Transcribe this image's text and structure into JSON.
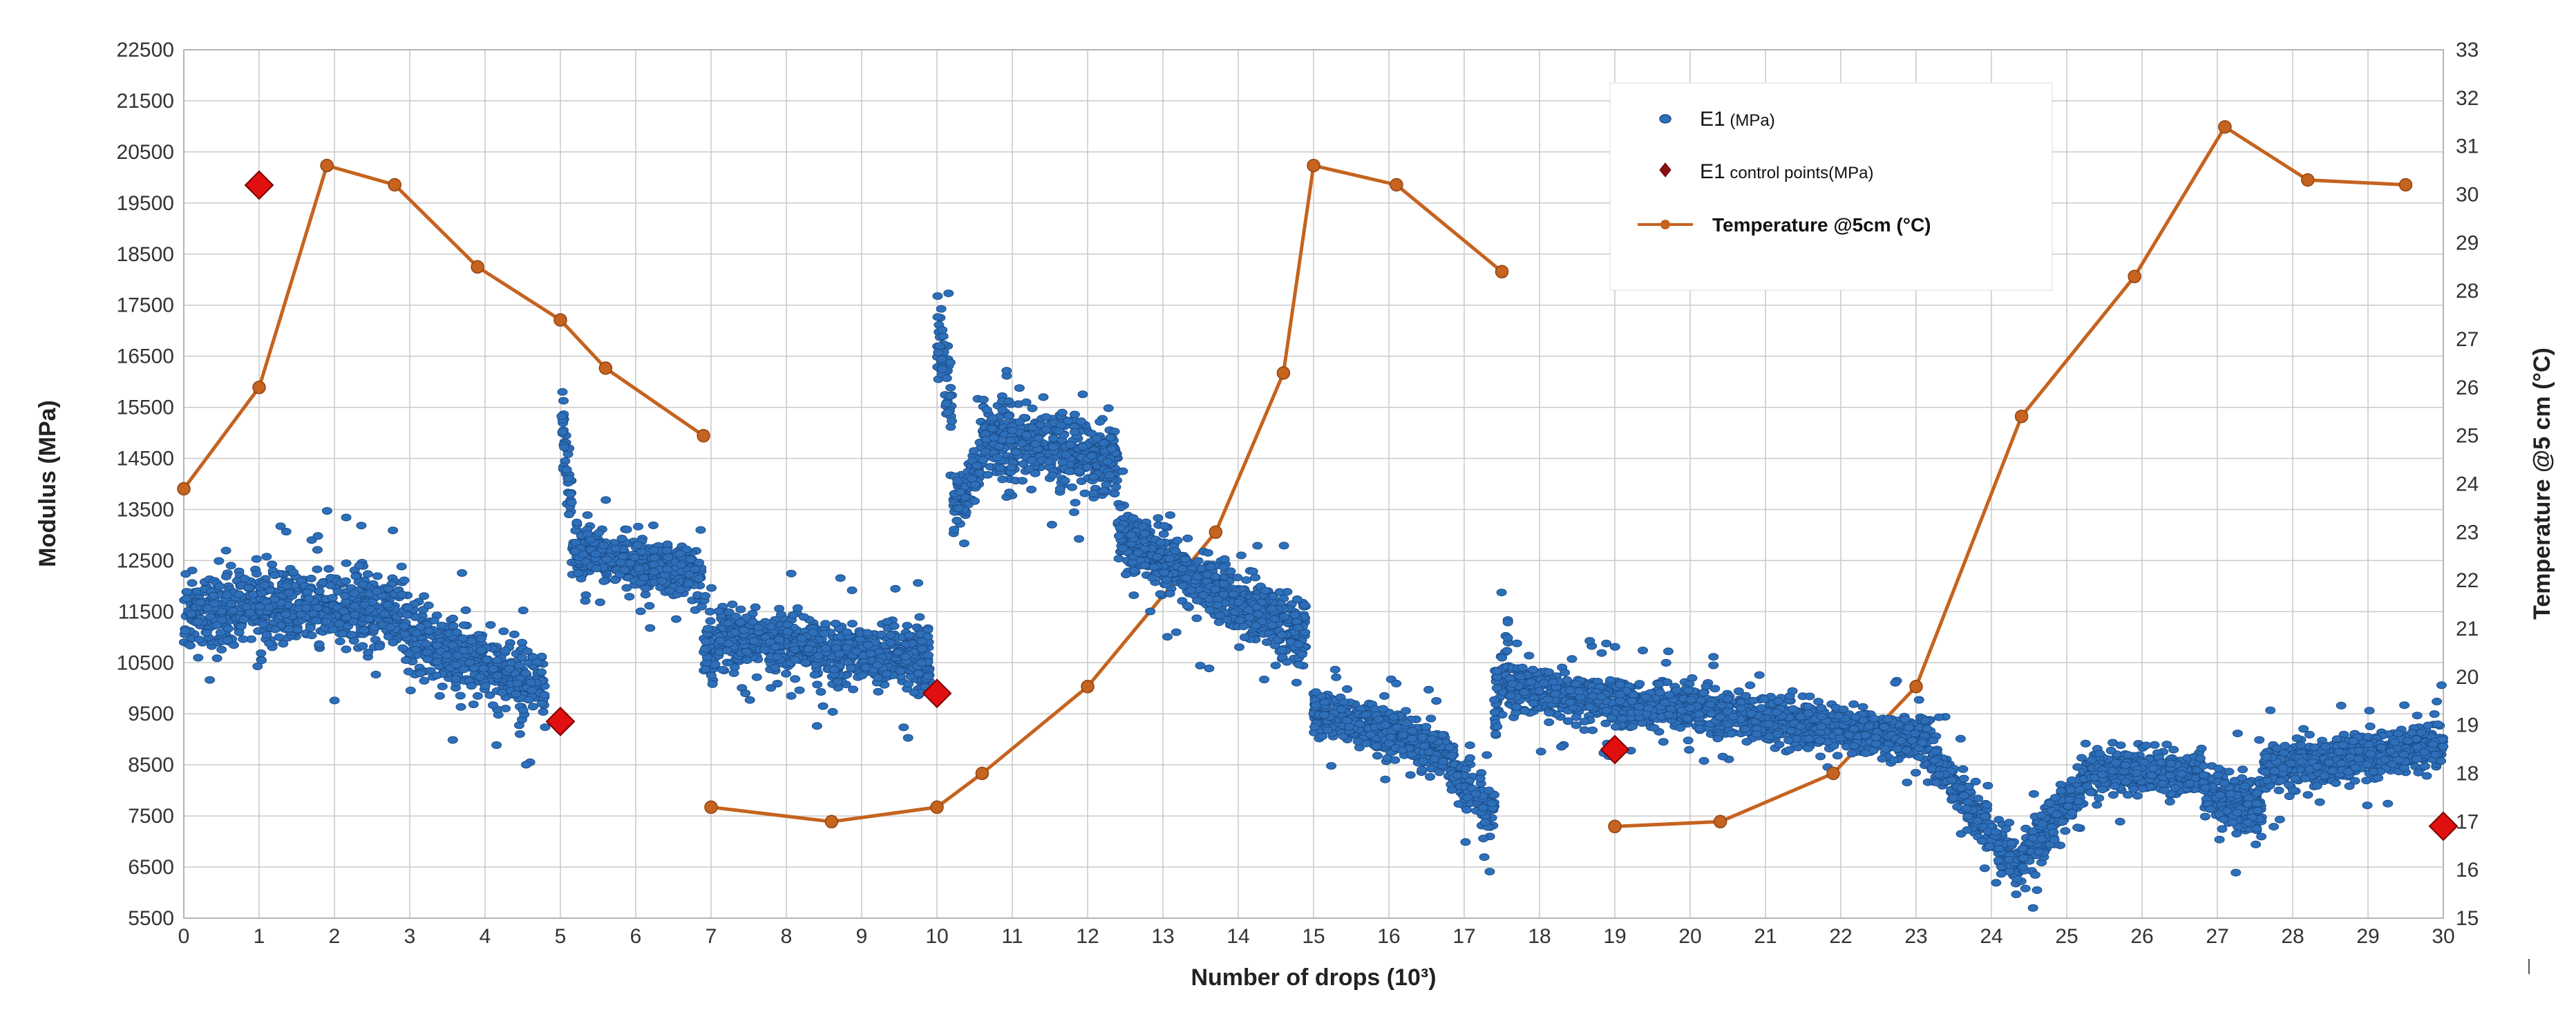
{
  "chart_data": {
    "type": "scatter",
    "title": "",
    "xlabel": "Number of drops (10³)",
    "ylabel_left": "Modulus (MPa)",
    "ylabel_right": "Temperature @5 cm (°C)",
    "xlim": [
      0,
      30
    ],
    "ylim_left": [
      5500,
      22500
    ],
    "ylim_right": [
      15,
      33
    ],
    "x_ticks": [
      "0",
      "1",
      "2",
      "3",
      "4",
      "5",
      "6",
      "7",
      "8",
      "9",
      "10",
      "11",
      "12",
      "13",
      "14",
      "15",
      "16",
      "17",
      "18",
      "19",
      "20",
      "21",
      "22",
      "23",
      "24",
      "25",
      "26",
      "27",
      "28",
      "29",
      "30"
    ],
    "y_left_ticks": [
      "5500",
      "6500",
      "7500",
      "8500",
      "9500",
      "10500",
      "11500",
      "12500",
      "13500",
      "14500",
      "15500",
      "16500",
      "17500",
      "18500",
      "19500",
      "20500",
      "21500",
      "22500"
    ],
    "y_right_ticks": [
      "15",
      "16",
      "17",
      "18",
      "19",
      "20",
      "21",
      "22",
      "23",
      "24",
      "25",
      "26",
      "27",
      "28",
      "29",
      "30",
      "31",
      "32",
      "33"
    ],
    "grid": true,
    "legend_position": "top-right",
    "legend": {
      "e1": {
        "label_main": "E1",
        "label_unit": " (MPa)"
      },
      "control": {
        "label_main": "E1",
        "label_unit": " control points(MPa)"
      },
      "temperature": {
        "label": "Temperature @5cm (°C)"
      }
    },
    "colors": {
      "e1": "#2e6fba",
      "e1_edge": "#1b4e8a",
      "control": "#e01010",
      "control_edge": "#7a0000",
      "temperature": "#c5631f",
      "grid": "#c9c9c9"
    },
    "series": [
      {
        "name": "E1 (MPa)",
        "kind": "scatter-trend",
        "axis": "left",
        "trend": [
          {
            "x0": 0.0,
            "x1": 1.0,
            "y0": 11500,
            "y1": 11600,
            "spread": 1400
          },
          {
            "x0": 1.0,
            "x1": 2.9,
            "y0": 11600,
            "y1": 11500,
            "spread": 1500
          },
          {
            "x0": 2.9,
            "x1": 4.8,
            "y0": 11000,
            "y1": 10000,
            "spread": 1400
          },
          {
            "x0": 5.0,
            "x1": 5.15,
            "y0": 15500,
            "y1": 13500,
            "spread": 1600
          },
          {
            "x0": 5.15,
            "x1": 6.9,
            "y0": 12700,
            "y1": 12200,
            "spread": 1000
          },
          {
            "x0": 6.9,
            "x1": 7.1,
            "y0": 11000,
            "y1": 10500,
            "spread": 1800
          },
          {
            "x0": 7.1,
            "x1": 9.9,
            "y0": 11000,
            "y1": 10500,
            "spread": 1200
          },
          {
            "x0": 10.0,
            "x1": 10.2,
            "y0": 17000,
            "y1": 15500,
            "spread": 1600
          },
          {
            "x0": 10.2,
            "x1": 10.6,
            "y0": 13500,
            "y1": 14500,
            "spread": 1200
          },
          {
            "x0": 10.6,
            "x1": 12.4,
            "y0": 15000,
            "y1": 14500,
            "spread": 1500
          },
          {
            "x0": 12.4,
            "x1": 14.9,
            "y0": 13000,
            "y1": 11000,
            "spread": 1300
          },
          {
            "x0": 15.0,
            "x1": 16.8,
            "y0": 9600,
            "y1": 8700,
            "spread": 900
          },
          {
            "x0": 16.8,
            "x1": 17.4,
            "y0": 8500,
            "y1": 7600,
            "spread": 1000
          },
          {
            "x0": 17.4,
            "x1": 17.6,
            "y0": 9500,
            "y1": 11000,
            "spread": 1600
          },
          {
            "x0": 17.6,
            "x1": 23.2,
            "y0": 10000,
            "y1": 9000,
            "spread": 900
          },
          {
            "x0": 23.2,
            "x1": 24.4,
            "y0": 8700,
            "y1": 6400,
            "spread": 900
          },
          {
            "x0": 24.4,
            "x1": 25.3,
            "y0": 6600,
            "y1": 8300,
            "spread": 1000
          },
          {
            "x0": 25.3,
            "x1": 26.8,
            "y0": 8400,
            "y1": 8300,
            "spread": 800
          },
          {
            "x0": 26.8,
            "x1": 27.6,
            "y0": 8000,
            "y1": 7600,
            "spread": 1100
          },
          {
            "x0": 27.6,
            "x1": 30.0,
            "y0": 8400,
            "y1": 8900,
            "spread": 900
          }
        ]
      },
      {
        "name": "E1 control points(MPa)",
        "kind": "scatter",
        "axis": "left",
        "points": [
          {
            "x": 1.0,
            "y": 19850
          },
          {
            "x": 5.0,
            "y": 9350
          },
          {
            "x": 10.0,
            "y": 9900
          },
          {
            "x": 19.0,
            "y": 8800
          },
          {
            "x": 30.0,
            "y": 7300
          }
        ]
      },
      {
        "name": "Temperature @5cm (°C)",
        "kind": "line",
        "axis": "right",
        "segments": [
          [
            {
              "x": 0.0,
              "y": 23.9
            },
            {
              "x": 1.0,
              "y": 26.0
            },
            {
              "x": 1.9,
              "y": 30.6
            },
            {
              "x": 2.8,
              "y": 30.2
            },
            {
              "x": 3.9,
              "y": 28.5
            },
            {
              "x": 5.0,
              "y": 27.4
            },
            {
              "x": 5.6,
              "y": 26.4
            },
            {
              "x": 6.9,
              "y": 25.0
            }
          ],
          [
            {
              "x": 7.0,
              "y": 17.3
            },
            {
              "x": 8.6,
              "y": 17.0
            },
            {
              "x": 10.0,
              "y": 17.3
            },
            {
              "x": 10.6,
              "y": 18.0
            },
            {
              "x": 12.0,
              "y": 19.8
            },
            {
              "x": 13.7,
              "y": 23.0
            },
            {
              "x": 14.6,
              "y": 26.3
            },
            {
              "x": 15.0,
              "y": 30.6
            },
            {
              "x": 16.1,
              "y": 30.2
            },
            {
              "x": 17.5,
              "y": 28.4
            }
          ],
          [
            {
              "x": 19.0,
              "y": 16.9
            },
            {
              "x": 20.4,
              "y": 17.0
            },
            {
              "x": 21.9,
              "y": 18.0
            },
            {
              "x": 23.0,
              "y": 19.8
            },
            {
              "x": 24.4,
              "y": 25.4
            },
            {
              "x": 25.9,
              "y": 28.3
            },
            {
              "x": 27.1,
              "y": 31.4
            },
            {
              "x": 28.2,
              "y": 30.3
            },
            {
              "x": 29.5,
              "y": 30.2
            }
          ]
        ]
      }
    ]
  }
}
